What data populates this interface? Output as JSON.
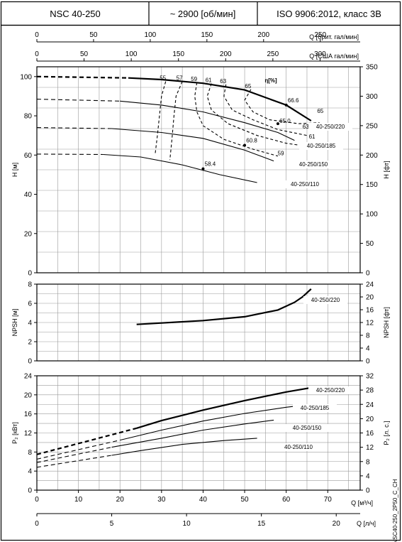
{
  "header": {
    "model": "NSC 40-250",
    "speed": "~ 2900 [об/мин]",
    "standard": "ISO 9906:2012, класс 3В"
  },
  "watermark": "NSC40-250_2P50_C_CH",
  "chart_data": [
    {
      "type": "line",
      "id": "head",
      "top_axes": [
        {
          "label": "Q [брит. гал/мин]",
          "ticks": [
            0,
            50,
            100,
            150,
            200,
            250
          ],
          "range": [
            0,
            285.2
          ]
        },
        {
          "label": "Q [США гал/мин]",
          "ticks": [
            0,
            50,
            100,
            150,
            200,
            250,
            300
          ],
          "range": [
            0,
            342.5
          ]
        }
      ],
      "ylabel": "H [м]",
      "ylim": [
        0,
        105
      ],
      "yticks": [
        0,
        20,
        40,
        60,
        80,
        100
      ],
      "ylabel_right": "H [фт]",
      "yticks_right": [
        0,
        50,
        100,
        150,
        200,
        250,
        300,
        350
      ],
      "xlim": [
        0,
        77.8
      ],
      "eff_label": "η[%]",
      "series": [
        {
          "name": "40-250/220",
          "dashed": [
            [
              0,
              100
            ],
            [
              22,
              99.3
            ]
          ],
          "solid": [
            [
              22,
              99.3
            ],
            [
              30,
              98.5
            ],
            [
              40,
              96.6
            ],
            [
              50,
              93.2
            ],
            [
              60,
              85.5
            ],
            [
              66,
              77.5
            ]
          ],
          "bold": true
        },
        {
          "name": "40-250/185",
          "dashed": [
            [
              0,
              88.5
            ],
            [
              20,
              87.5
            ]
          ],
          "solid": [
            [
              20,
              87.5
            ],
            [
              30,
              85.5
            ],
            [
              40,
              82
            ],
            [
              50,
              76.5
            ],
            [
              58,
              71.5
            ],
            [
              62,
              67.5
            ]
          ]
        },
        {
          "name": "40-250/150",
          "dashed": [
            [
              0,
              74
            ],
            [
              18,
              73.5
            ]
          ],
          "solid": [
            [
              18,
              73.5
            ],
            [
              30,
              71.5
            ],
            [
              40,
              68.5
            ],
            [
              50,
              62.5
            ],
            [
              57,
              57
            ]
          ]
        },
        {
          "name": "40-250/110",
          "dashed": [
            [
              0,
              60.5
            ],
            [
              16,
              60.3
            ]
          ],
          "solid": [
            [
              16,
              60.3
            ],
            [
              25,
              59
            ],
            [
              35,
              55
            ],
            [
              44,
              50
            ],
            [
              53,
              46
            ]
          ]
        }
      ],
      "efficiency_curves": [
        {
          "label": "55",
          "points": [
            [
              31,
              97.5
            ],
            [
              30,
              90
            ],
            [
              29.5,
              80
            ],
            [
              29,
              70
            ],
            [
              28.5,
              61
            ]
          ]
        },
        {
          "label": "57",
          "points": [
            [
              35,
              97.5
            ],
            [
              33.5,
              90
            ],
            [
              33,
              80
            ],
            [
              32.5,
              68
            ],
            [
              32,
              57.5
            ]
          ]
        },
        {
          "label": "59",
          "points": [
            [
              38.5,
              97
            ],
            [
              38,
              90
            ],
            [
              38.5,
              82
            ],
            [
              40,
              75
            ],
            [
              45,
              68
            ],
            [
              52,
              63
            ],
            [
              58,
              59.5
            ]
          ]
        },
        {
          "label": "61",
          "points": [
            [
              42,
              96.5
            ],
            [
              41,
              90
            ],
            [
              42,
              83
            ],
            [
              46,
              76
            ],
            [
              53,
              70
            ],
            [
              60,
              66
            ],
            [
              65,
              64.5
            ]
          ]
        },
        {
          "label": "63",
          "points": [
            [
              45.5,
              96
            ],
            [
              45,
              90
            ],
            [
              47,
              83
            ],
            [
              52,
              78
            ],
            [
              58,
              73
            ],
            [
              65,
              70
            ]
          ]
        },
        {
          "label": "65",
          "points": [
            [
              51.5,
              93.5
            ],
            [
              50,
              88
            ],
            [
              52,
              82
            ],
            [
              56,
              78
            ],
            [
              63,
              76
            ],
            [
              68,
              76.5
            ]
          ]
        }
      ],
      "efficiency_labels": [
        {
          "text": "66.6",
          "at": [
            60,
            85.5
          ]
        },
        {
          "text": "65",
          "at": [
            66.5,
            80
          ]
        },
        {
          "text": "65.0",
          "at": [
            58,
            75
          ]
        },
        {
          "text": "63",
          "at": [
            63,
            72
          ]
        },
        {
          "text": "61",
          "at": [
            64.5,
            67
          ]
        },
        {
          "text": "60.8",
          "at": [
            50,
            65
          ]
        },
        {
          "text": "59",
          "at": [
            57,
            58.5
          ]
        },
        {
          "text": "58.4",
          "at": [
            40,
            53
          ]
        }
      ],
      "annotation_points": [
        [
          60,
          85.5
        ],
        [
          58,
          76
        ],
        [
          50,
          65
        ],
        [
          40,
          53
        ]
      ]
    },
    {
      "type": "line",
      "id": "npsh",
      "ylabel": "NPSH [м]",
      "ylim": [
        0,
        8
      ],
      "yticks": [
        0,
        2,
        4,
        6,
        8
      ],
      "ylabel_right": "NPSH [фт]",
      "yticks_right": [
        0,
        4,
        8,
        12,
        16,
        20,
        24
      ],
      "xlim": [
        0,
        77.8
      ],
      "series": [
        {
          "name": "40-250/220",
          "solid": [
            [
              24,
              3.8
            ],
            [
              30,
              3.95
            ],
            [
              40,
              4.2
            ],
            [
              50,
              4.6
            ],
            [
              58,
              5.3
            ],
            [
              62,
              6.1
            ],
            [
              64,
              6.7
            ],
            [
              66,
              7.5
            ]
          ],
          "bold": true
        }
      ]
    },
    {
      "type": "line",
      "id": "power",
      "ylabel": "P₂ [кВт]",
      "ylim": [
        0,
        24
      ],
      "yticks": [
        0,
        4,
        8,
        12,
        16,
        20,
        24
      ],
      "ylabel_right": "P₂ [л. с.]",
      "yticks_right": [
        0,
        4,
        8,
        12,
        16,
        20,
        24,
        28,
        32
      ],
      "xlabel": "Q [м³/ч]",
      "xticks": [
        0,
        10,
        20,
        30,
        40,
        50,
        60,
        70
      ],
      "xlim": [
        0,
        77.8
      ],
      "x2label": "Q [л/ч]",
      "x2ticks": [
        0,
        5,
        10,
        15,
        20
      ],
      "x2range": [
        0,
        21.6
      ],
      "series": [
        {
          "name": "40-250/220",
          "dashed": [
            [
              0,
              7.5
            ],
            [
              24,
              13
            ]
          ],
          "solid": [
            [
              24,
              13
            ],
            [
              30,
              14.6
            ],
            [
              40,
              16.8
            ],
            [
              50,
              18.8
            ],
            [
              60,
              20.6
            ],
            [
              66,
              21.5
            ]
          ],
          "bold": true
        },
        {
          "name": "40-250/185",
          "dashed": [
            [
              0,
              6.5
            ],
            [
              20,
              10.5
            ]
          ],
          "solid": [
            [
              20,
              10.5
            ],
            [
              30,
              12.6
            ],
            [
              40,
              14.5
            ],
            [
              50,
              16.1
            ],
            [
              60,
              17.4
            ],
            [
              62,
              17.6
            ]
          ]
        },
        {
          "name": "40-250/150",
          "dashed": [
            [
              0,
              5.8
            ],
            [
              18,
              9
            ]
          ],
          "solid": [
            [
              18,
              9
            ],
            [
              30,
              10.9
            ],
            [
              40,
              12.6
            ],
            [
              50,
              13.9
            ],
            [
              57,
              14.7
            ]
          ]
        },
        {
          "name": "40-250/110",
          "dashed": [
            [
              0,
              4.8
            ],
            [
              18,
              7.3
            ]
          ],
          "solid": [
            [
              18,
              7.3
            ],
            [
              25,
              8.3
            ],
            [
              35,
              9.6
            ],
            [
              45,
              10.4
            ],
            [
              53,
              10.9
            ]
          ]
        }
      ]
    }
  ]
}
